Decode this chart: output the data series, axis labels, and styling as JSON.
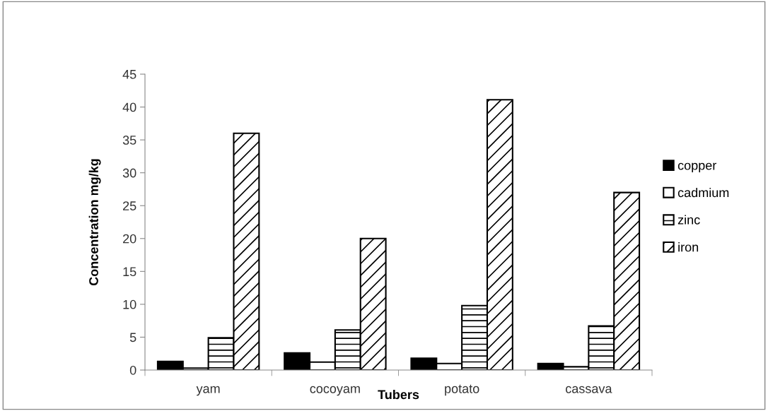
{
  "chart_data": {
    "type": "bar",
    "xlabel": "Tubers",
    "ylabel": "Concentration mg/kg",
    "categories": [
      "yam",
      "cocoyam",
      "potato",
      "cassava"
    ],
    "series": [
      {
        "name": "copper",
        "color": "#000000",
        "values": [
          1.3,
          2.6,
          1.8,
          1.0
        ]
      },
      {
        "name": "cadmium",
        "color": "#ffffff",
        "values": [
          0.3,
          1.2,
          1.0,
          0.5
        ]
      },
      {
        "name": "zinc",
        "color": "#000000",
        "values": [
          4.9,
          6.1,
          9.8,
          6.7
        ]
      },
      {
        "name": "iron",
        "color": "#000000",
        "values": [
          36,
          20,
          41.1,
          27
        ]
      }
    ],
    "ylim": [
      0,
      45
    ],
    "yticks": [
      0,
      5,
      10,
      15,
      20,
      25,
      30,
      35,
      40,
      45
    ],
    "grid": false,
    "legend": "right"
  }
}
